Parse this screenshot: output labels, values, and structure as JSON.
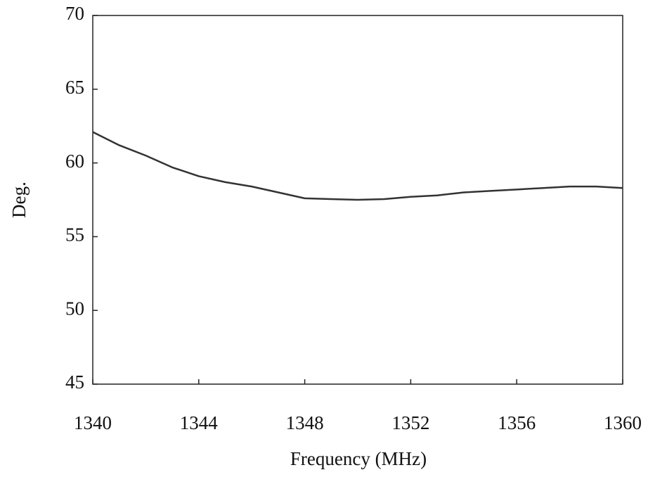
{
  "chart_data": {
    "type": "line",
    "xlabel": "Frequency (MHz)",
    "ylabel": "Deg.",
    "x": [
      1340,
      1341,
      1342,
      1343,
      1344,
      1345,
      1346,
      1347,
      1348,
      1349,
      1350,
      1351,
      1352,
      1353,
      1354,
      1355,
      1356,
      1357,
      1358,
      1359,
      1360
    ],
    "series": [
      {
        "color": "#333333",
        "values": [
          62.1,
          61.2,
          60.5,
          59.7,
          59.1,
          58.7,
          58.4,
          58.0,
          57.6,
          57.55,
          57.5,
          57.55,
          57.7,
          57.8,
          58.0,
          58.1,
          58.2,
          58.3,
          58.4,
          58.4,
          58.3
        ]
      }
    ],
    "xlim": [
      1340,
      1360
    ],
    "xticks": [
      1340,
      1344,
      1348,
      1352,
      1356,
      1360
    ],
    "ylim": [
      45,
      70
    ],
    "yticks": [
      45,
      50,
      55,
      60,
      65,
      70
    ],
    "grid": false
  }
}
